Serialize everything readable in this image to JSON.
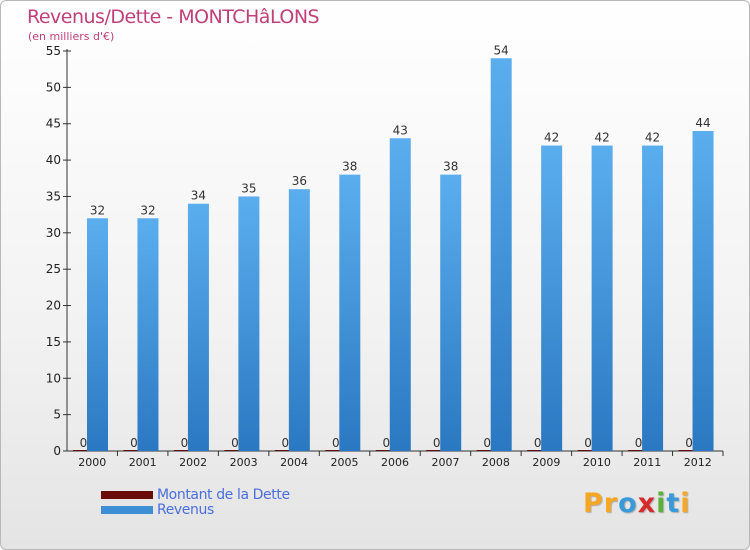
{
  "header": {
    "title": "Revenus/Dette - MONTCHâLONS",
    "subtitle": "(en milliers d'€)"
  },
  "chart_data": {
    "type": "bar",
    "categories": [
      "2000",
      "2001",
      "2002",
      "2003",
      "2004",
      "2005",
      "2006",
      "2007",
      "2008",
      "2009",
      "2010",
      "2011",
      "2012"
    ],
    "series": [
      {
        "name": "Montant de la Dette",
        "color": "#6b0c0c",
        "values": [
          0,
          0,
          0,
          0,
          0,
          0,
          0,
          0,
          0,
          0,
          0,
          0,
          0
        ]
      },
      {
        "name": "Revenus",
        "color": "#3d8fd6",
        "values": [
          32,
          32,
          34,
          35,
          36,
          38,
          43,
          38,
          54,
          42,
          42,
          42,
          44
        ]
      }
    ],
    "yticks": [
      0,
      5,
      10,
      15,
      20,
      25,
      30,
      35,
      40,
      45,
      50,
      55
    ],
    "ylim": [
      0,
      55
    ],
    "xlabel": "",
    "ylabel": "",
    "grid": false,
    "legend_position": "bottom-left"
  },
  "legend": {
    "items": [
      {
        "label": "Montant de la Dette",
        "color": "#6b0c0c"
      },
      {
        "label": "Revenus",
        "color": "#3d8fd6"
      }
    ]
  },
  "logo": {
    "text": "Proxiti",
    "letters": [
      "P",
      "r",
      "o",
      "x",
      "i",
      "t",
      "i"
    ],
    "colors": [
      "#f5a623",
      "#f5a623",
      "#3a9ad9",
      "#d62b2b",
      "#59b338",
      "#3a9ad9",
      "#f5a623"
    ]
  }
}
